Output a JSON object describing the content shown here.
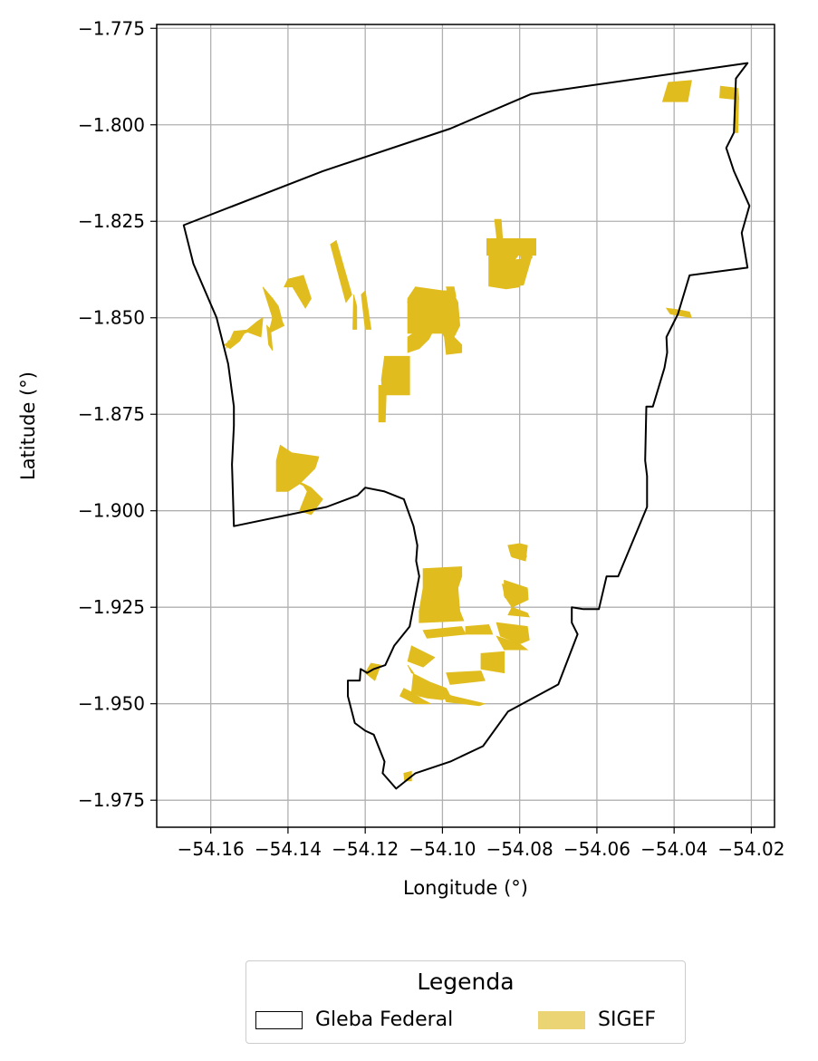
{
  "chart_data": {
    "type": "map",
    "xlabel": "Longitude (°)",
    "ylabel": "Latitude (°)",
    "xlim": [
      -54.174,
      -54.014
    ],
    "ylim": [
      -1.982,
      -1.774
    ],
    "x_ticks": [
      -54.16,
      -54.14,
      -54.12,
      -54.1,
      -54.08,
      -54.06,
      -54.04,
      -54.02
    ],
    "x_tick_labels": [
      "−54.16",
      "−54.14",
      "−54.12",
      "−54.10",
      "−54.08",
      "−54.06",
      "−54.04",
      "−54.02"
    ],
    "y_ticks": [
      -1.775,
      -1.8,
      -1.825,
      -1.85,
      -1.875,
      -1.9,
      -1.925,
      -1.95,
      -1.975
    ],
    "y_tick_labels": [
      "−1.775",
      "−1.800",
      "−1.825",
      "−1.850",
      "−1.875",
      "−1.900",
      "−1.925",
      "−1.950",
      "−1.975"
    ],
    "grid": true,
    "colors": {
      "boundary": "#000000",
      "parcels": "#e0bc1e",
      "legend_parcels": "#ebd474",
      "grid": "#b0b0b0"
    },
    "boundary": [
      [
        -54.167,
        -1.826
      ],
      [
        -54.1645,
        -1.836
      ],
      [
        -54.1585,
        -1.85
      ],
      [
        -54.1555,
        -1.862
      ],
      [
        -54.154,
        -1.873
      ],
      [
        -54.154,
        -1.878
      ],
      [
        -54.1545,
        -1.888
      ],
      [
        -54.154,
        -1.904
      ],
      [
        -54.13,
        -1.899
      ],
      [
        -54.122,
        -1.896
      ],
      [
        -54.12,
        -1.894
      ],
      [
        -54.115,
        -1.895
      ],
      [
        -54.11,
        -1.897
      ],
      [
        -54.1075,
        -1.904
      ],
      [
        -54.1065,
        -1.909
      ],
      [
        -54.1068,
        -1.913
      ],
      [
        -54.106,
        -1.917
      ],
      [
        -54.1085,
        -1.93
      ],
      [
        -54.1125,
        -1.935
      ],
      [
        -54.1148,
        -1.94
      ],
      [
        -54.1178,
        -1.941
      ],
      [
        -54.1195,
        -1.942
      ],
      [
        -54.1212,
        -1.941
      ],
      [
        -54.1214,
        -1.944
      ],
      [
        -54.1245,
        -1.944
      ],
      [
        -54.1245,
        -1.948
      ],
      [
        -54.1227,
        -1.955
      ],
      [
        -54.12,
        -1.957
      ],
      [
        -54.1178,
        -1.958
      ],
      [
        -54.116,
        -1.9625
      ],
      [
        -54.115,
        -1.965
      ],
      [
        -54.1155,
        -1.968
      ],
      [
        -54.112,
        -1.972
      ],
      [
        -54.107,
        -1.968
      ],
      [
        -54.098,
        -1.965
      ],
      [
        -54.0895,
        -1.961
      ],
      [
        -54.083,
        -1.952
      ],
      [
        -54.07,
        -1.945
      ],
      [
        -54.065,
        -1.932
      ],
      [
        -54.0665,
        -1.929
      ],
      [
        -54.0665,
        -1.925
      ],
      [
        -54.0635,
        -1.9255
      ],
      [
        -54.0595,
        -1.9255
      ],
      [
        -54.0575,
        -1.917
      ],
      [
        -54.0545,
        -1.917
      ],
      [
        -54.047,
        -1.899
      ],
      [
        -54.047,
        -1.891
      ],
      [
        -54.0475,
        -1.887
      ],
      [
        -54.0472,
        -1.873
      ],
      [
        -54.0455,
        -1.873
      ],
      [
        -54.044,
        -1.868
      ],
      [
        -54.0425,
        -1.863
      ],
      [
        -54.0418,
        -1.859
      ],
      [
        -54.042,
        -1.855
      ],
      [
        -54.039,
        -1.849
      ],
      [
        -54.036,
        -1.839
      ],
      [
        -54.021,
        -1.837
      ],
      [
        -54.0225,
        -1.828
      ],
      [
        -54.0205,
        -1.821
      ],
      [
        -54.0245,
        -1.812
      ],
      [
        -54.0265,
        -1.806
      ],
      [
        -54.0245,
        -1.802
      ],
      [
        -54.024,
        -1.788
      ],
      [
        -54.021,
        -1.784
      ],
      [
        -54.077,
        -1.792
      ],
      [
        -54.098,
        -1.801
      ],
      [
        -54.131,
        -1.812
      ],
      [
        -54.167,
        -1.826
      ]
    ],
    "parcels": [
      [
        [
          -54.0415,
          -1.789
        ],
        [
          -54.0355,
          -1.7885
        ],
        [
          -54.0365,
          -1.794
        ],
        [
          -54.043,
          -1.794
        ]
      ],
      [
        [
          -54.028,
          -1.79
        ],
        [
          -54.0235,
          -1.7905
        ],
        [
          -54.0232,
          -1.7935
        ],
        [
          -54.0282,
          -1.793
        ]
      ],
      [
        [
          -54.024,
          -1.7935
        ],
        [
          -54.0233,
          -1.7937
        ],
        [
          -54.0235,
          -1.802
        ],
        [
          -54.0242,
          -1.802
        ]
      ],
      [
        [
          -54.0805,
          -1.83
        ],
        [
          -54.0805,
          -1.834
        ],
        [
          -54.0815,
          -1.8352
        ],
        [
          -54.08,
          -1.842
        ],
        [
          -54.0835,
          -1.8425
        ],
        [
          -54.088,
          -1.8418
        ],
        [
          -54.088,
          -1.834
        ],
        [
          -54.083,
          -1.833
        ],
        [
          -54.0825,
          -1.831
        ],
        [
          -54.082,
          -1.83
        ],
        [
          -54.0768,
          -1.83
        ],
        [
          -54.0768,
          -1.8345
        ],
        [
          -54.0795,
          -1.8352
        ]
      ],
      [
        [
          -54.083,
          -1.8352
        ],
        [
          -54.077,
          -1.8345
        ],
        [
          -54.079,
          -1.8415
        ],
        [
          -54.083,
          -1.842
        ]
      ],
      [
        [
          -54.0865,
          -1.8245
        ],
        [
          -54.0848,
          -1.8245
        ],
        [
          -54.0842,
          -1.833
        ],
        [
          -54.0855,
          -1.833
        ]
      ],
      [
        [
          -54.0758,
          -1.8295
        ],
        [
          -54.0885,
          -1.8295
        ],
        [
          -54.0885,
          -1.8338
        ],
        [
          -54.0758,
          -1.8338
        ]
      ],
      [
        [
          -54.042,
          -1.8475
        ],
        [
          -54.041,
          -1.849
        ],
        [
          -54.0355,
          -1.85
        ],
        [
          -54.036,
          -1.8485
        ],
        [
          -54.0385,
          -1.848
        ]
      ],
      [
        [
          -54.1275,
          -1.83
        ],
        [
          -54.129,
          -1.831
        ],
        [
          -54.125,
          -1.846
        ],
        [
          -54.1235,
          -1.844
        ]
      ],
      [
        [
          -54.14,
          -1.84
        ],
        [
          -54.136,
          -1.839
        ],
        [
          -54.134,
          -1.845
        ],
        [
          -54.1355,
          -1.8475
        ]
      ],
      [
        [
          -54.14,
          -1.84
        ],
        [
          -54.141,
          -1.842
        ],
        [
          -54.138,
          -1.842
        ]
      ],
      [
        [
          -54.1465,
          -1.842
        ],
        [
          -54.144,
          -1.845
        ],
        [
          -54.142,
          -1.85
        ],
        [
          -54.141,
          -1.852
        ],
        [
          -54.145,
          -1.854
        ],
        [
          -54.144,
          -1.85
        ]
      ],
      [
        [
          -54.144,
          -1.845
        ],
        [
          -54.1425,
          -1.847
        ],
        [
          -54.1412,
          -1.852
        ],
        [
          -54.143,
          -1.853
        ]
      ],
      [
        [
          -54.1465,
          -1.85
        ],
        [
          -54.147,
          -1.855
        ],
        [
          -54.151,
          -1.8535
        ],
        [
          -54.1525,
          -1.856
        ],
        [
          -54.155,
          -1.858
        ],
        [
          -54.1565,
          -1.857
        ],
        [
          -54.151,
          -1.8535
        ],
        [
          -54.148,
          -1.851
        ]
      ],
      [
        [
          -54.1455,
          -1.852
        ],
        [
          -54.1445,
          -1.853
        ],
        [
          -54.144,
          -1.8585
        ],
        [
          -54.145,
          -1.857
        ]
      ],
      [
        [
          -54.154,
          -1.8535
        ],
        [
          -54.149,
          -1.853
        ],
        [
          -54.1555,
          -1.856
        ],
        [
          -54.156,
          -1.858
        ]
      ],
      [
        [
          -54.123,
          -1.844
        ],
        [
          -54.1222,
          -1.847
        ],
        [
          -54.1222,
          -1.853
        ],
        [
          -54.1232,
          -1.853
        ]
      ],
      [
        [
          -54.12,
          -1.843
        ],
        [
          -54.121,
          -1.844
        ],
        [
          -54.12,
          -1.853
        ],
        [
          -54.1185,
          -1.853
        ]
      ],
      [
        [
          -54.109,
          -1.846
        ],
        [
          -54.1075,
          -1.848
        ],
        [
          -54.105,
          -1.848
        ],
        [
          -54.104,
          -1.85
        ],
        [
          -54.106,
          -1.853
        ],
        [
          -54.109,
          -1.855
        ],
        [
          -54.109,
          -1.859
        ],
        [
          -54.106,
          -1.858
        ],
        [
          -54.1035,
          -1.8555
        ],
        [
          -54.1025,
          -1.8535
        ],
        [
          -54.104,
          -1.85
        ],
        [
          -54.1065,
          -1.847
        ]
      ],
      [
        [
          -54.109,
          -1.845
        ],
        [
          -54.107,
          -1.842
        ],
        [
          -54.1,
          -1.843
        ],
        [
          -54.0975,
          -1.843
        ],
        [
          -54.096,
          -1.846
        ],
        [
          -54.0955,
          -1.852
        ],
        [
          -54.096,
          -1.853
        ],
        [
          -54.097,
          -1.855
        ],
        [
          -54.095,
          -1.857
        ],
        [
          -54.095,
          -1.859
        ],
        [
          -54.099,
          -1.8595
        ],
        [
          -54.0995,
          -1.855
        ],
        [
          -54.1,
          -1.854
        ],
        [
          -54.104,
          -1.854
        ],
        [
          -54.109,
          -1.854
        ]
      ],
      [
        [
          -54.097,
          -1.842
        ],
        [
          -54.099,
          -1.842
        ],
        [
          -54.0985,
          -1.8445
        ],
        [
          -54.0965,
          -1.8445
        ]
      ],
      [
        [
          -54.1085,
          -1.86
        ],
        [
          -54.115,
          -1.86
        ],
        [
          -54.1158,
          -1.866
        ],
        [
          -54.1155,
          -1.87
        ],
        [
          -54.1085,
          -1.87
        ]
      ],
      [
        [
          -54.1165,
          -1.8675
        ],
        [
          -54.1145,
          -1.8675
        ],
        [
          -54.1148,
          -1.877
        ],
        [
          -54.1165,
          -1.877
        ]
      ],
      [
        [
          -54.142,
          -1.883
        ],
        [
          -54.139,
          -1.885
        ],
        [
          -54.132,
          -1.886
        ],
        [
          -54.133,
          -1.889
        ],
        [
          -54.137,
          -1.893
        ],
        [
          -54.14,
          -1.895
        ],
        [
          -54.143,
          -1.895
        ],
        [
          -54.143,
          -1.887
        ]
      ],
      [
        [
          -54.139,
          -1.892
        ],
        [
          -54.136,
          -1.8935
        ],
        [
          -54.135,
          -1.895
        ],
        [
          -54.137,
          -1.9
        ],
        [
          -54.134,
          -1.901
        ],
        [
          -54.131,
          -1.897
        ],
        [
          -54.134,
          -1.894
        ],
        [
          -54.136,
          -1.893
        ]
      ],
      [
        [
          -54.08,
          -1.9085
        ],
        [
          -54.083,
          -1.909
        ],
        [
          -54.082,
          -1.912
        ],
        [
          -54.0785,
          -1.913
        ],
        [
          -54.078,
          -1.909
        ]
      ],
      [
        [
          -54.083,
          -1.909
        ],
        [
          -54.0785,
          -1.909
        ],
        [
          -54.0782,
          -1.912
        ],
        [
          -54.0822,
          -1.9118
        ]
      ],
      [
        [
          -54.084,
          -1.918
        ],
        [
          -54.078,
          -1.92
        ],
        [
          -54.0778,
          -1.923
        ],
        [
          -54.082,
          -1.925
        ],
        [
          -54.084,
          -1.922
        ]
      ],
      [
        [
          -54.078,
          -1.9205
        ],
        [
          -54.0845,
          -1.919
        ],
        [
          -54.0838,
          -1.9225
        ],
        [
          -54.0782,
          -1.9225
        ]
      ],
      [
        [
          -54.082,
          -1.925
        ],
        [
          -54.078,
          -1.9265
        ],
        [
          -54.0775,
          -1.9275
        ],
        [
          -54.083,
          -1.927
        ]
      ],
      [
        [
          -54.105,
          -1.915
        ],
        [
          -54.095,
          -1.9145
        ],
        [
          -54.095,
          -1.917
        ],
        [
          -54.105,
          -1.9175
        ]
      ],
      [
        [
          -54.105,
          -1.9175
        ],
        [
          -54.095,
          -1.917
        ],
        [
          -54.096,
          -1.92
        ],
        [
          -54.105,
          -1.92
        ]
      ],
      [
        [
          -54.105,
          -1.92
        ],
        [
          -54.096,
          -1.92
        ],
        [
          -54.0955,
          -1.926
        ],
        [
          -54.106,
          -1.926
        ]
      ],
      [
        [
          -54.106,
          -1.926
        ],
        [
          -54.0955,
          -1.926
        ],
        [
          -54.0945,
          -1.9285
        ],
        [
          -54.106,
          -1.929
        ]
      ],
      [
        [
          -54.105,
          -1.931
        ],
        [
          -54.095,
          -1.93
        ],
        [
          -54.094,
          -1.932
        ],
        [
          -54.104,
          -1.933
        ]
      ],
      [
        [
          -54.094,
          -1.93
        ],
        [
          -54.088,
          -1.9295
        ],
        [
          -54.087,
          -1.932
        ],
        [
          -54.094,
          -1.932
        ]
      ],
      [
        [
          -54.086,
          -1.929
        ],
        [
          -54.078,
          -1.93
        ],
        [
          -54.0775,
          -1.9335
        ],
        [
          -54.08,
          -1.9345
        ],
        [
          -54.085,
          -1.9325
        ]
      ],
      [
        [
          -54.086,
          -1.9325
        ],
        [
          -54.08,
          -1.9345
        ],
        [
          -54.078,
          -1.936
        ],
        [
          -54.084,
          -1.936
        ]
      ],
      [
        [
          -54.09,
          -1.937
        ],
        [
          -54.084,
          -1.9365
        ],
        [
          -54.084,
          -1.942
        ],
        [
          -54.09,
          -1.941
        ]
      ],
      [
        [
          -54.108,
          -1.935
        ],
        [
          -54.102,
          -1.938
        ],
        [
          -54.105,
          -1.9405
        ],
        [
          -54.109,
          -1.939
        ]
      ],
      [
        [
          -54.109,
          -1.94
        ],
        [
          -54.1075,
          -1.942
        ],
        [
          -54.108,
          -1.947
        ],
        [
          -54.106,
          -1.948
        ],
        [
          -54.104,
          -1.9485
        ],
        [
          -54.1,
          -1.949
        ],
        [
          -54.098,
          -1.948
        ],
        [
          -54.099,
          -1.946
        ],
        [
          -54.103,
          -1.9445
        ],
        [
          -54.108,
          -1.942
        ]
      ],
      [
        [
          -54.099,
          -1.942
        ],
        [
          -54.09,
          -1.9415
        ],
        [
          -54.089,
          -1.944
        ],
        [
          -54.098,
          -1.945
        ]
      ],
      [
        [
          -54.1,
          -1.947
        ],
        [
          -54.0975,
          -1.948
        ],
        [
          -54.089,
          -1.95
        ],
        [
          -54.0905,
          -1.9505
        ],
        [
          -54.099,
          -1.9495
        ]
      ],
      [
        [
          -54.11,
          -1.946
        ],
        [
          -54.108,
          -1.947
        ],
        [
          -54.105,
          -1.949
        ],
        [
          -54.103,
          -1.95
        ],
        [
          -54.107,
          -1.95
        ],
        [
          -54.111,
          -1.948
        ]
      ],
      [
        [
          -54.1185,
          -1.9395
        ],
        [
          -54.116,
          -1.94
        ],
        [
          -54.1175,
          -1.944
        ],
        [
          -54.12,
          -1.942
        ]
      ],
      [
        [
          -54.108,
          -1.9675
        ],
        [
          -54.11,
          -1.968
        ],
        [
          -54.1098,
          -1.97
        ],
        [
          -54.108,
          -1.97
        ]
      ]
    ]
  },
  "legend": {
    "title": "Legenda",
    "items": [
      {
        "label": "Gleba Federal",
        "kind": "outline"
      },
      {
        "label": "SIGEF",
        "kind": "fill"
      }
    ]
  }
}
